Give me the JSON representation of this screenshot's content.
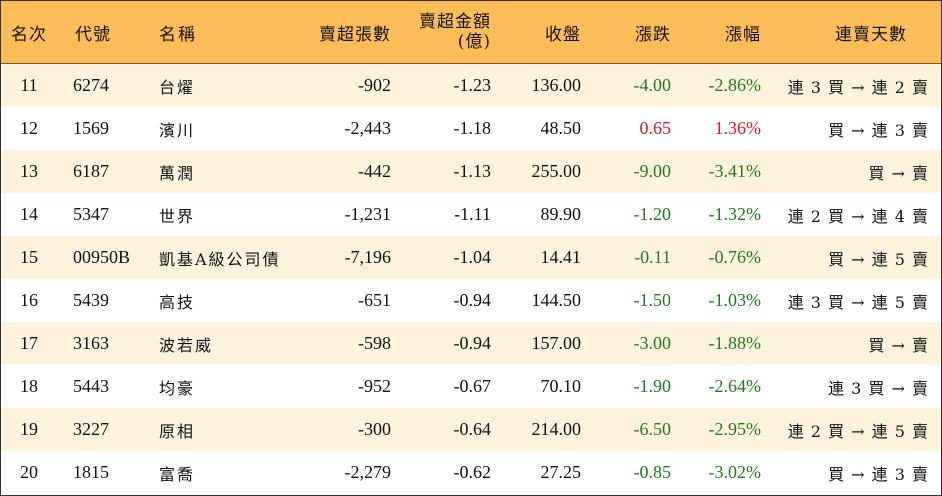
{
  "header": {
    "rank": "名次",
    "code": "代號",
    "name": "名稱",
    "shares": "賣超張數",
    "amount_line1": "賣超金額",
    "amount_line2": "(億)",
    "close": "收盤",
    "change": "漲跌",
    "pct": "漲幅",
    "days": "連賣天數"
  },
  "colors": {
    "header_bg": "#fbbd58",
    "row_alt_bg": "#fdf3dc",
    "down": "#1f7a1f",
    "up": "#e0161b"
  },
  "rows": [
    {
      "rank": "11",
      "code": "6274",
      "name": "台燿",
      "shares": "-902",
      "amount": "-1.23",
      "close": "136.00",
      "change": "-4.00",
      "pct": "-2.86%",
      "days": "連 3 買 → 連 2 賣",
      "dir": "down"
    },
    {
      "rank": "12",
      "code": "1569",
      "name": "濱川",
      "shares": "-2,443",
      "amount": "-1.18",
      "close": "48.50",
      "change": "0.65",
      "pct": "1.36%",
      "days": "買 → 連 3 賣",
      "dir": "up"
    },
    {
      "rank": "13",
      "code": "6187",
      "name": "萬潤",
      "shares": "-442",
      "amount": "-1.13",
      "close": "255.00",
      "change": "-9.00",
      "pct": "-3.41%",
      "days": "買 → 賣",
      "dir": "down"
    },
    {
      "rank": "14",
      "code": "5347",
      "name": "世界",
      "shares": "-1,231",
      "amount": "-1.11",
      "close": "89.90",
      "change": "-1.20",
      "pct": "-1.32%",
      "days": "連 2 買 → 連 4 賣",
      "dir": "down"
    },
    {
      "rank": "15",
      "code": "00950B",
      "name": "凱基A級公司債",
      "shares": "-7,196",
      "amount": "-1.04",
      "close": "14.41",
      "change": "-0.11",
      "pct": "-0.76%",
      "days": "買 → 連 5 賣",
      "dir": "down"
    },
    {
      "rank": "16",
      "code": "5439",
      "name": "高技",
      "shares": "-651",
      "amount": "-0.94",
      "close": "144.50",
      "change": "-1.50",
      "pct": "-1.03%",
      "days": "連 3 買 → 連 5 賣",
      "dir": "down"
    },
    {
      "rank": "17",
      "code": "3163",
      "name": "波若威",
      "shares": "-598",
      "amount": "-0.94",
      "close": "157.00",
      "change": "-3.00",
      "pct": "-1.88%",
      "days": "買 → 賣",
      "dir": "down"
    },
    {
      "rank": "18",
      "code": "5443",
      "name": "均豪",
      "shares": "-952",
      "amount": "-0.67",
      "close": "70.10",
      "change": "-1.90",
      "pct": "-2.64%",
      "days": "連 3 買 → 賣",
      "dir": "down"
    },
    {
      "rank": "19",
      "code": "3227",
      "name": "原相",
      "shares": "-300",
      "amount": "-0.64",
      "close": "214.00",
      "change": "-6.50",
      "pct": "-2.95%",
      "days": "連 2 買 → 連 5 賣",
      "dir": "down"
    },
    {
      "rank": "20",
      "code": "1815",
      "name": "富喬",
      "shares": "-2,279",
      "amount": "-0.62",
      "close": "27.25",
      "change": "-0.85",
      "pct": "-3.02%",
      "days": "買 → 連 3 賣",
      "dir": "down"
    }
  ]
}
